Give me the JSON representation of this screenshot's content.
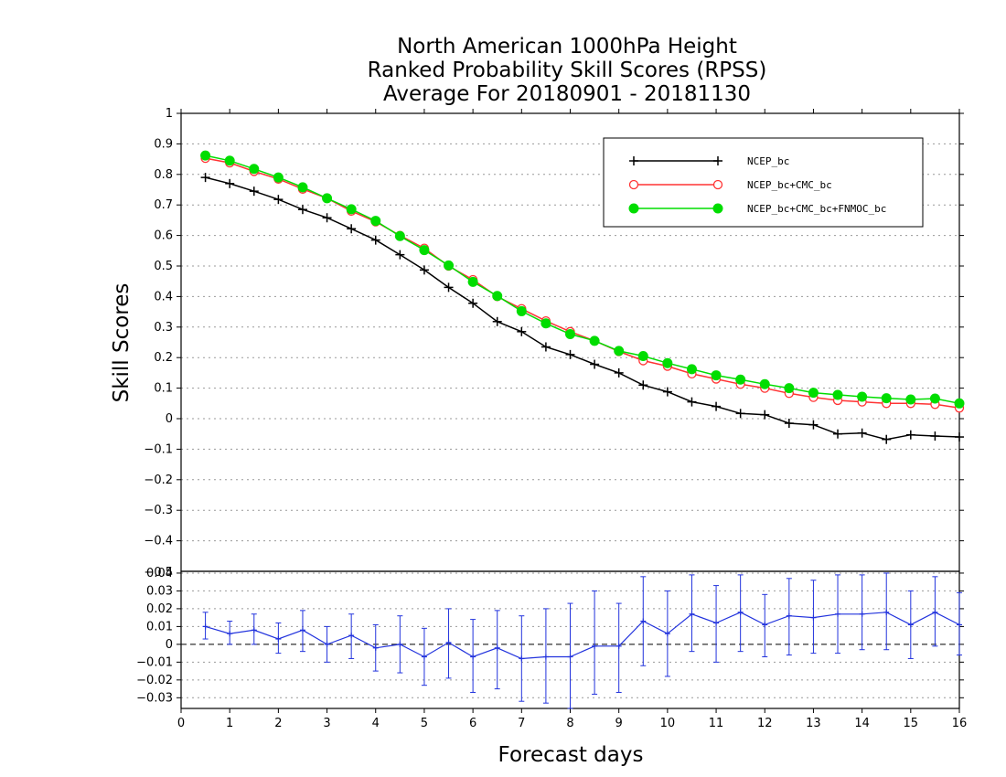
{
  "chart_data": {
    "type": "line",
    "title": [
      "North American 1000hPa Height",
      "Ranked Probability Skill Scores (RPSS)",
      "Average For 20180901 - 20181130"
    ],
    "xlabel": "Forecast days",
    "ylabel": "Skill Scores",
    "xlim": [
      0,
      16
    ],
    "ylim": [
      -0.5,
      1
    ],
    "x_ticks": [
      "0",
      "1",
      "2",
      "3",
      "4",
      "5",
      "6",
      "7",
      "8",
      "9",
      "10",
      "11",
      "12",
      "13",
      "14",
      "15",
      "16"
    ],
    "y_ticks": [
      {
        "v": 1,
        "label": "1"
      },
      {
        "v": 0.9,
        "label": "0.9"
      },
      {
        "v": 0.8,
        "label": "0.8"
      },
      {
        "v": 0.7,
        "label": "0.7"
      },
      {
        "v": 0.6,
        "label": "0.6"
      },
      {
        "v": 0.5,
        "label": "0.5"
      },
      {
        "v": 0.4,
        "label": "0.4"
      },
      {
        "v": 0.3,
        "label": "0.3"
      },
      {
        "v": 0.2,
        "label": "0.2"
      },
      {
        "v": 0.1,
        "label": "0.1"
      },
      {
        "v": 0,
        "label": "0"
      },
      {
        "v": -0.1,
        "label": "−0.1"
      },
      {
        "v": -0.2,
        "label": "−0.2"
      },
      {
        "v": -0.3,
        "label": "−0.3"
      },
      {
        "v": -0.4,
        "label": "−0.4"
      }
    ],
    "grid": true,
    "legend_position": "top-right",
    "x": [
      0.5,
      1,
      1.5,
      2,
      2.5,
      3,
      3.5,
      4,
      4.5,
      5,
      5.5,
      6,
      6.5,
      7,
      7.5,
      8,
      8.5,
      9,
      9.5,
      10,
      10.5,
      11,
      11.5,
      12,
      12.5,
      13,
      13.5,
      14,
      14.5,
      15,
      15.5,
      16
    ],
    "series": [
      {
        "name": "NCEP_bc",
        "color": "#000000",
        "marker": "plus",
        "values": [
          0.79,
          0.77,
          0.745,
          0.718,
          0.685,
          0.658,
          0.622,
          0.585,
          0.537,
          0.487,
          0.43,
          0.378,
          0.318,
          0.285,
          0.235,
          0.21,
          0.178,
          0.15,
          0.11,
          0.088,
          0.055,
          0.04,
          0.017,
          0.013,
          -0.015,
          -0.02,
          -0.05,
          -0.047,
          -0.068,
          -0.053,
          -0.057,
          -0.06
        ]
      },
      {
        "name": "NCEP_bc+CMC_bc",
        "color": "#ff3333",
        "marker": "open-circle",
        "values": [
          0.853,
          0.838,
          0.81,
          0.785,
          0.752,
          0.722,
          0.68,
          0.645,
          0.6,
          0.558,
          0.5,
          0.455,
          0.4,
          0.36,
          0.32,
          0.285,
          0.255,
          0.22,
          0.19,
          0.172,
          0.147,
          0.13,
          0.113,
          0.1,
          0.083,
          0.07,
          0.06,
          0.055,
          0.05,
          0.05,
          0.047,
          0.035
        ]
      },
      {
        "name": "NCEP_bc+CMC_bc+FNMOC_bc",
        "color": "#00dd00",
        "marker": "filled-circle",
        "values": [
          0.862,
          0.845,
          0.818,
          0.79,
          0.758,
          0.722,
          0.686,
          0.648,
          0.598,
          0.552,
          0.502,
          0.448,
          0.402,
          0.352,
          0.312,
          0.277,
          0.255,
          0.222,
          0.205,
          0.182,
          0.162,
          0.142,
          0.128,
          0.113,
          0.1,
          0.085,
          0.078,
          0.072,
          0.067,
          0.063,
          0.066,
          0.05
        ]
      }
    ],
    "diff_panel": {
      "ylim": [
        -0.036,
        0.041
      ],
      "y_ticks": [
        {
          "v": 0.04,
          "label": "0.04"
        },
        {
          "v": 0.03,
          "label": "0.03"
        },
        {
          "v": 0.02,
          "label": "0.02"
        },
        {
          "v": 0.01,
          "label": "0.01"
        },
        {
          "v": 0,
          "label": "0"
        },
        {
          "v": -0.01,
          "label": "−0.01"
        },
        {
          "v": -0.02,
          "label": "−0.02"
        },
        {
          "v": -0.03,
          "label": "−0.03"
        }
      ],
      "extra_top_label": "−0.5",
      "color": "#2233dd",
      "values": [
        0.01,
        0.006,
        0.008,
        0.003,
        0.008,
        0.0,
        0.005,
        -0.002,
        0.0,
        -0.007,
        0.001,
        -0.007,
        -0.002,
        -0.008,
        -0.007,
        -0.007,
        -0.001,
        -0.001,
        0.013,
        0.006,
        0.017,
        0.012,
        0.018,
        0.011,
        0.016,
        0.015,
        0.017,
        0.017,
        0.018,
        0.011,
        0.018,
        0.011
      ],
      "err_low": [
        0.003,
        0.0,
        0.0,
        -0.005,
        -0.004,
        -0.01,
        -0.008,
        -0.015,
        -0.016,
        -0.023,
        -0.019,
        -0.027,
        -0.025,
        -0.032,
        -0.033,
        -0.036,
        -0.028,
        -0.027,
        -0.012,
        -0.018,
        -0.004,
        -0.01,
        -0.004,
        -0.007,
        -0.006,
        -0.005,
        -0.005,
        -0.003,
        -0.003,
        -0.008,
        -0.001,
        -0.006
      ],
      "err_high": [
        0.018,
        0.013,
        0.017,
        0.012,
        0.019,
        0.01,
        0.017,
        0.011,
        0.016,
        0.009,
        0.02,
        0.014,
        0.019,
        0.016,
        0.02,
        0.023,
        0.03,
        0.023,
        0.038,
        0.03,
        0.039,
        0.033,
        0.039,
        0.028,
        0.037,
        0.036,
        0.039,
        0.039,
        0.04,
        0.03,
        0.038,
        0.029
      ]
    }
  }
}
